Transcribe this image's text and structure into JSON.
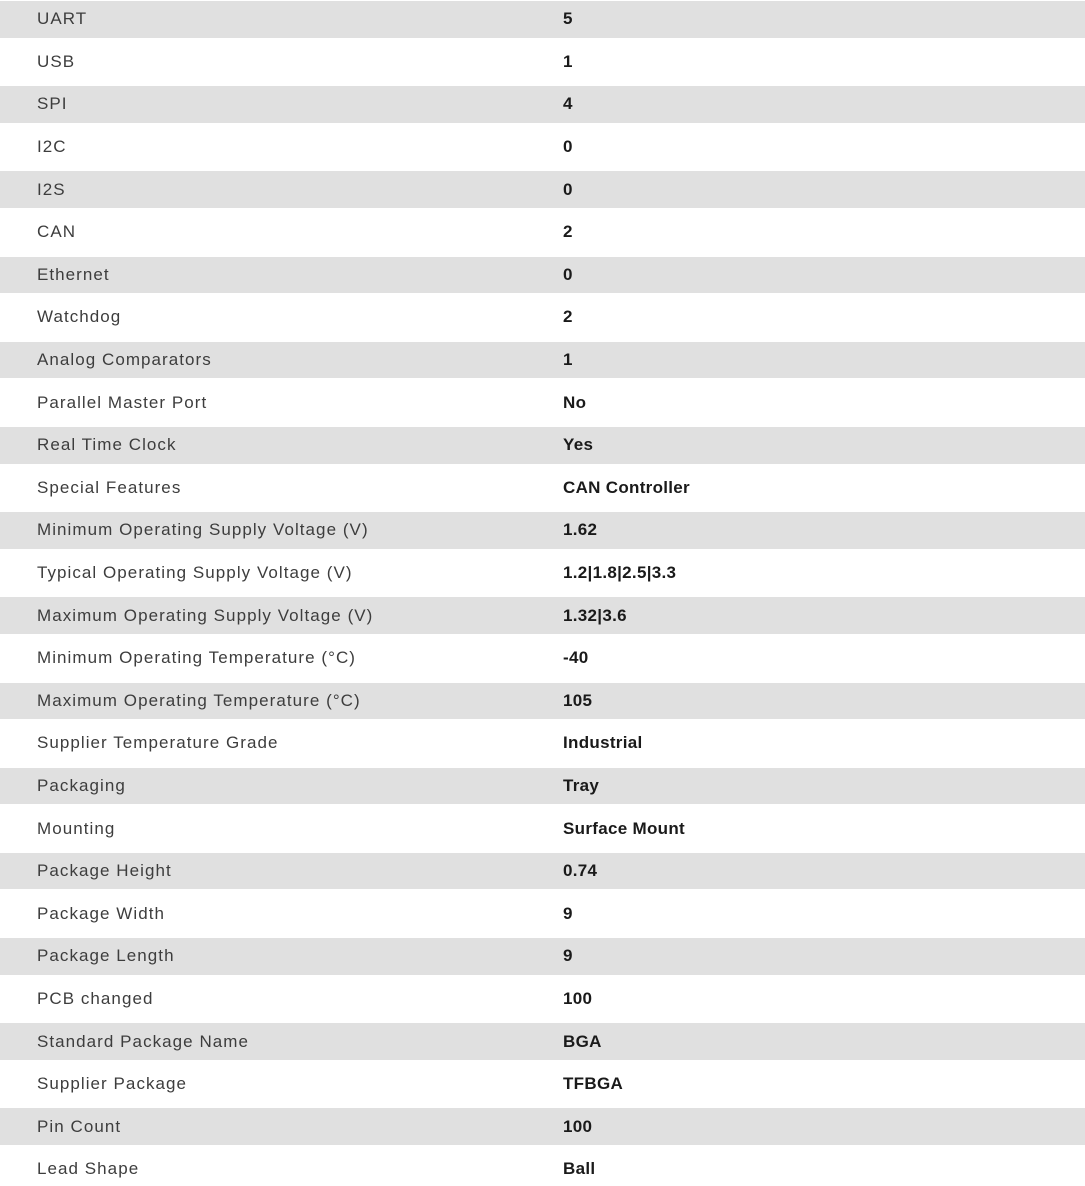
{
  "page": {
    "background_color": "#ffffff"
  },
  "table": {
    "row_alt_background": "#e0e0e0",
    "label_color": "#3d3d3d",
    "value_color": "#1a1a1a",
    "rows": [
      {
        "label": "UART",
        "value": "5"
      },
      {
        "label": "USB",
        "value": "1"
      },
      {
        "label": "SPI",
        "value": "4"
      },
      {
        "label": "I2C",
        "value": "0"
      },
      {
        "label": "I2S",
        "value": "0"
      },
      {
        "label": "CAN",
        "value": "2"
      },
      {
        "label": "Ethernet",
        "value": "0"
      },
      {
        "label": "Watchdog",
        "value": "2"
      },
      {
        "label": "Analog Comparators",
        "value": "1"
      },
      {
        "label": "Parallel Master Port",
        "value": "No"
      },
      {
        "label": "Real Time Clock",
        "value": "Yes"
      },
      {
        "label": "Special Features",
        "value": "CAN Controller"
      },
      {
        "label": "Minimum Operating Supply Voltage (V)",
        "value": "1.62"
      },
      {
        "label": "Typical Operating Supply Voltage (V)",
        "value": "1.2|1.8|2.5|3.3"
      },
      {
        "label": "Maximum Operating Supply Voltage (V)",
        "value": "1.32|3.6"
      },
      {
        "label": "Minimum Operating Temperature (°C)",
        "value": "-40"
      },
      {
        "label": "Maximum Operating Temperature (°C)",
        "value": "105"
      },
      {
        "label": "Supplier Temperature Grade",
        "value": "Industrial"
      },
      {
        "label": "Packaging",
        "value": "Tray"
      },
      {
        "label": "Mounting",
        "value": "Surface Mount"
      },
      {
        "label": "Package Height",
        "value": "0.74"
      },
      {
        "label": "Package Width",
        "value": "9"
      },
      {
        "label": "Package Length",
        "value": "9"
      },
      {
        "label": "PCB changed",
        "value": "100"
      },
      {
        "label": "Standard Package Name",
        "value": "BGA"
      },
      {
        "label": "Supplier Package",
        "value": "TFBGA"
      },
      {
        "label": "Pin Count",
        "value": "100"
      },
      {
        "label": "Lead Shape",
        "value": "Ball"
      }
    ]
  }
}
